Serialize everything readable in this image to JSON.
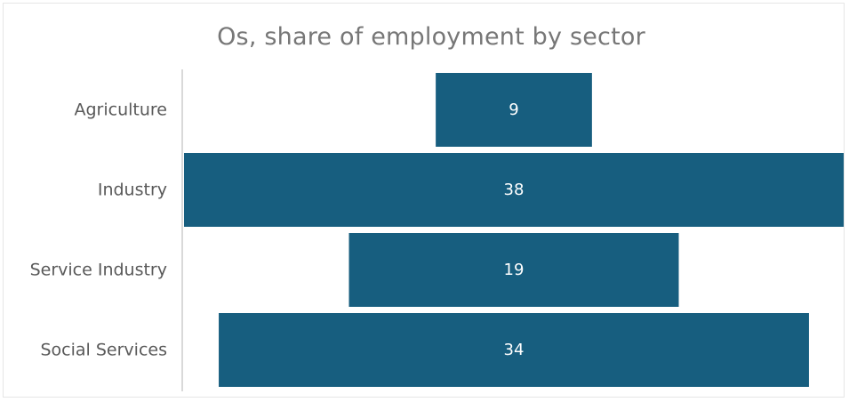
{
  "chart_data": {
    "type": "bar",
    "orientation": "horizontal-centered",
    "title": "Os, share of employment by sector",
    "categories": [
      "Agriculture",
      "Industry",
      "Service Industry",
      "Social Services"
    ],
    "values": [
      9,
      38,
      19,
      34
    ],
    "data_labels": [
      "9",
      "38",
      "19",
      "34"
    ],
    "xlim": [
      0,
      38
    ],
    "grid": false,
    "legend": "none",
    "bar_color": "#175e7f"
  }
}
